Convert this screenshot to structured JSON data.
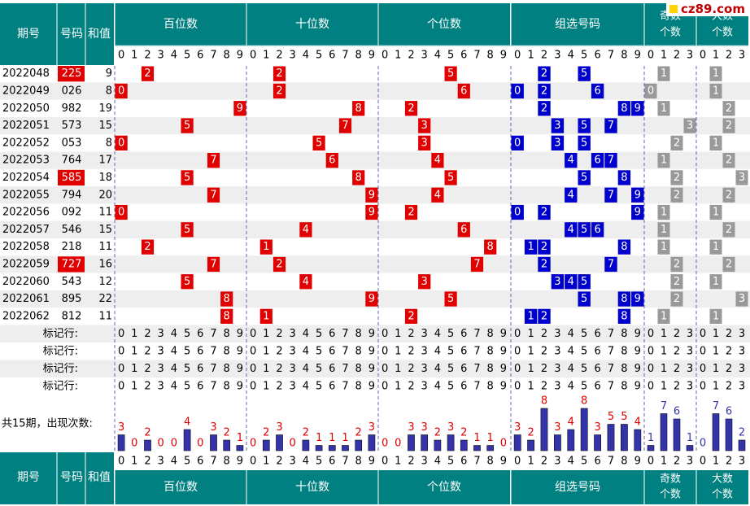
{
  "header": {
    "issue_label": "期号",
    "number_label": "号码",
    "sum_label": "和值",
    "sections": [
      "百位数",
      "十位数",
      "个位数",
      "组选号码"
    ],
    "odd_count_label": "奇数个数",
    "big_count_label": "大数个数",
    "digits": [
      "0",
      "1",
      "2",
      "3",
      "4",
      "5",
      "6",
      "7",
      "8",
      "9"
    ],
    "count_digits": [
      "0",
      "1",
      "2",
      "3"
    ]
  },
  "watermark": "cz89.com",
  "rows": [
    {
      "issue": "2022048",
      "number": "225",
      "sum": "9",
      "highlight": true
    },
    {
      "issue": "2022049",
      "number": "026",
      "sum": "8",
      "highlight": false
    },
    {
      "issue": "2022050",
      "number": "982",
      "sum": "19",
      "highlight": false
    },
    {
      "issue": "2022051",
      "number": "573",
      "sum": "15",
      "highlight": false
    },
    {
      "issue": "2022052",
      "number": "053",
      "sum": "8",
      "highlight": false
    },
    {
      "issue": "2022053",
      "number": "764",
      "sum": "17",
      "highlight": false
    },
    {
      "issue": "2022054",
      "number": "585",
      "sum": "18",
      "highlight": true
    },
    {
      "issue": "2022055",
      "number": "794",
      "sum": "20",
      "highlight": false
    },
    {
      "issue": "2022056",
      "number": "092",
      "sum": "11",
      "highlight": false
    },
    {
      "issue": "2022057",
      "number": "546",
      "sum": "15",
      "highlight": false
    },
    {
      "issue": "2022058",
      "number": "218",
      "sum": "11",
      "highlight": false
    },
    {
      "issue": "2022059",
      "number": "727",
      "sum": "16",
      "highlight": true
    },
    {
      "issue": "2022060",
      "number": "543",
      "sum": "12",
      "highlight": false
    },
    {
      "issue": "2022061",
      "number": "895",
      "sum": "22",
      "highlight": false
    },
    {
      "issue": "2022062",
      "number": "812",
      "sum": "11",
      "highlight": false
    }
  ],
  "marker": {
    "label": "标记行:",
    "row_count": 4
  },
  "stats": {
    "label": "共15期，出现次数:",
    "hundreds": [
      3,
      0,
      2,
      0,
      0,
      4,
      0,
      3,
      2,
      1
    ],
    "tens": [
      0,
      2,
      3,
      0,
      2,
      1,
      1,
      1,
      2,
      3
    ],
    "units": [
      0,
      0,
      3,
      3,
      2,
      3,
      2,
      1,
      1,
      0
    ],
    "group": [
      3,
      2,
      8,
      3,
      4,
      8,
      3,
      5,
      5,
      4
    ],
    "odd": [
      1,
      7,
      6,
      1
    ],
    "big": [
      0,
      7,
      6,
      2
    ]
  },
  "colors": {
    "header_bg": "#008080",
    "header_text": "#ffffff",
    "position_ball": "#e00000",
    "group_ball": "#0000cc",
    "count_ball": "#999999",
    "stat_bar": "#3333aa",
    "stat_label_position": "#e00000",
    "stat_label_group": "#e00000",
    "stat_label_count": "#3333aa"
  },
  "chart_data": {
    "type": "table",
    "title": "",
    "columns": [
      "期号",
      "号码",
      "和值"
    ],
    "records": [
      [
        "2022048",
        "225",
        "9"
      ],
      [
        "2022049",
        "026",
        "8"
      ],
      [
        "2022050",
        "982",
        "19"
      ],
      [
        "2022051",
        "573",
        "15"
      ],
      [
        "2022052",
        "053",
        "8"
      ],
      [
        "2022053",
        "764",
        "17"
      ],
      [
        "2022054",
        "585",
        "18"
      ],
      [
        "2022055",
        "794",
        "20"
      ],
      [
        "2022056",
        "092",
        "11"
      ],
      [
        "2022057",
        "546",
        "15"
      ],
      [
        "2022058",
        "218",
        "11"
      ],
      [
        "2022059",
        "727",
        "16"
      ],
      [
        "2022060",
        "543",
        "12"
      ],
      [
        "2022061",
        "895",
        "22"
      ],
      [
        "2022062",
        "812",
        "11"
      ]
    ],
    "occurrence_counts": {
      "categories_digit": [
        "0",
        "1",
        "2",
        "3",
        "4",
        "5",
        "6",
        "7",
        "8",
        "9"
      ],
      "categories_count": [
        "0",
        "1",
        "2",
        "3"
      ],
      "series": [
        {
          "name": "百位数",
          "values": [
            3,
            0,
            2,
            0,
            0,
            4,
            0,
            3,
            2,
            1
          ]
        },
        {
          "name": "十位数",
          "values": [
            0,
            2,
            3,
            0,
            2,
            1,
            1,
            1,
            2,
            3
          ]
        },
        {
          "name": "个位数",
          "values": [
            0,
            0,
            3,
            3,
            2,
            3,
            2,
            1,
            1,
            0
          ]
        },
        {
          "name": "组选号码",
          "values": [
            3,
            2,
            8,
            3,
            4,
            8,
            3,
            5,
            5,
            4
          ]
        },
        {
          "name": "奇数个数",
          "values": [
            1,
            7,
            6,
            1
          ]
        },
        {
          "name": "大数个数",
          "values": [
            0,
            7,
            6,
            2
          ]
        }
      ]
    }
  }
}
